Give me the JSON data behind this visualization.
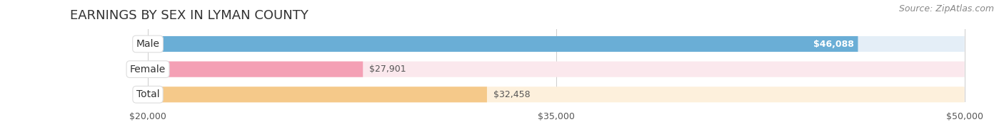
{
  "title": "EARNINGS BY SEX IN LYMAN COUNTY",
  "source": "Source: ZipAtlas.com",
  "categories": [
    "Male",
    "Female",
    "Total"
  ],
  "values": [
    46088,
    27901,
    32458
  ],
  "bar_colors": [
    "#6aaed6",
    "#f4a0b5",
    "#f5c98a"
  ],
  "bar_bg_colors": [
    "#e4eef7",
    "#fbe8ed",
    "#fdf0dc"
  ],
  "value_labels": [
    "$46,088",
    "$27,901",
    "$32,458"
  ],
  "value_inside": [
    true,
    false,
    false
  ],
  "xmin": 20000,
  "xmax": 50000,
  "xticks": [
    20000,
    35000,
    50000
  ],
  "xtick_labels": [
    "$20,000",
    "$35,000",
    "$50,000"
  ],
  "title_fontsize": 13,
  "source_fontsize": 9,
  "label_fontsize": 10,
  "value_fontsize": 9,
  "background_color": "#ffffff"
}
